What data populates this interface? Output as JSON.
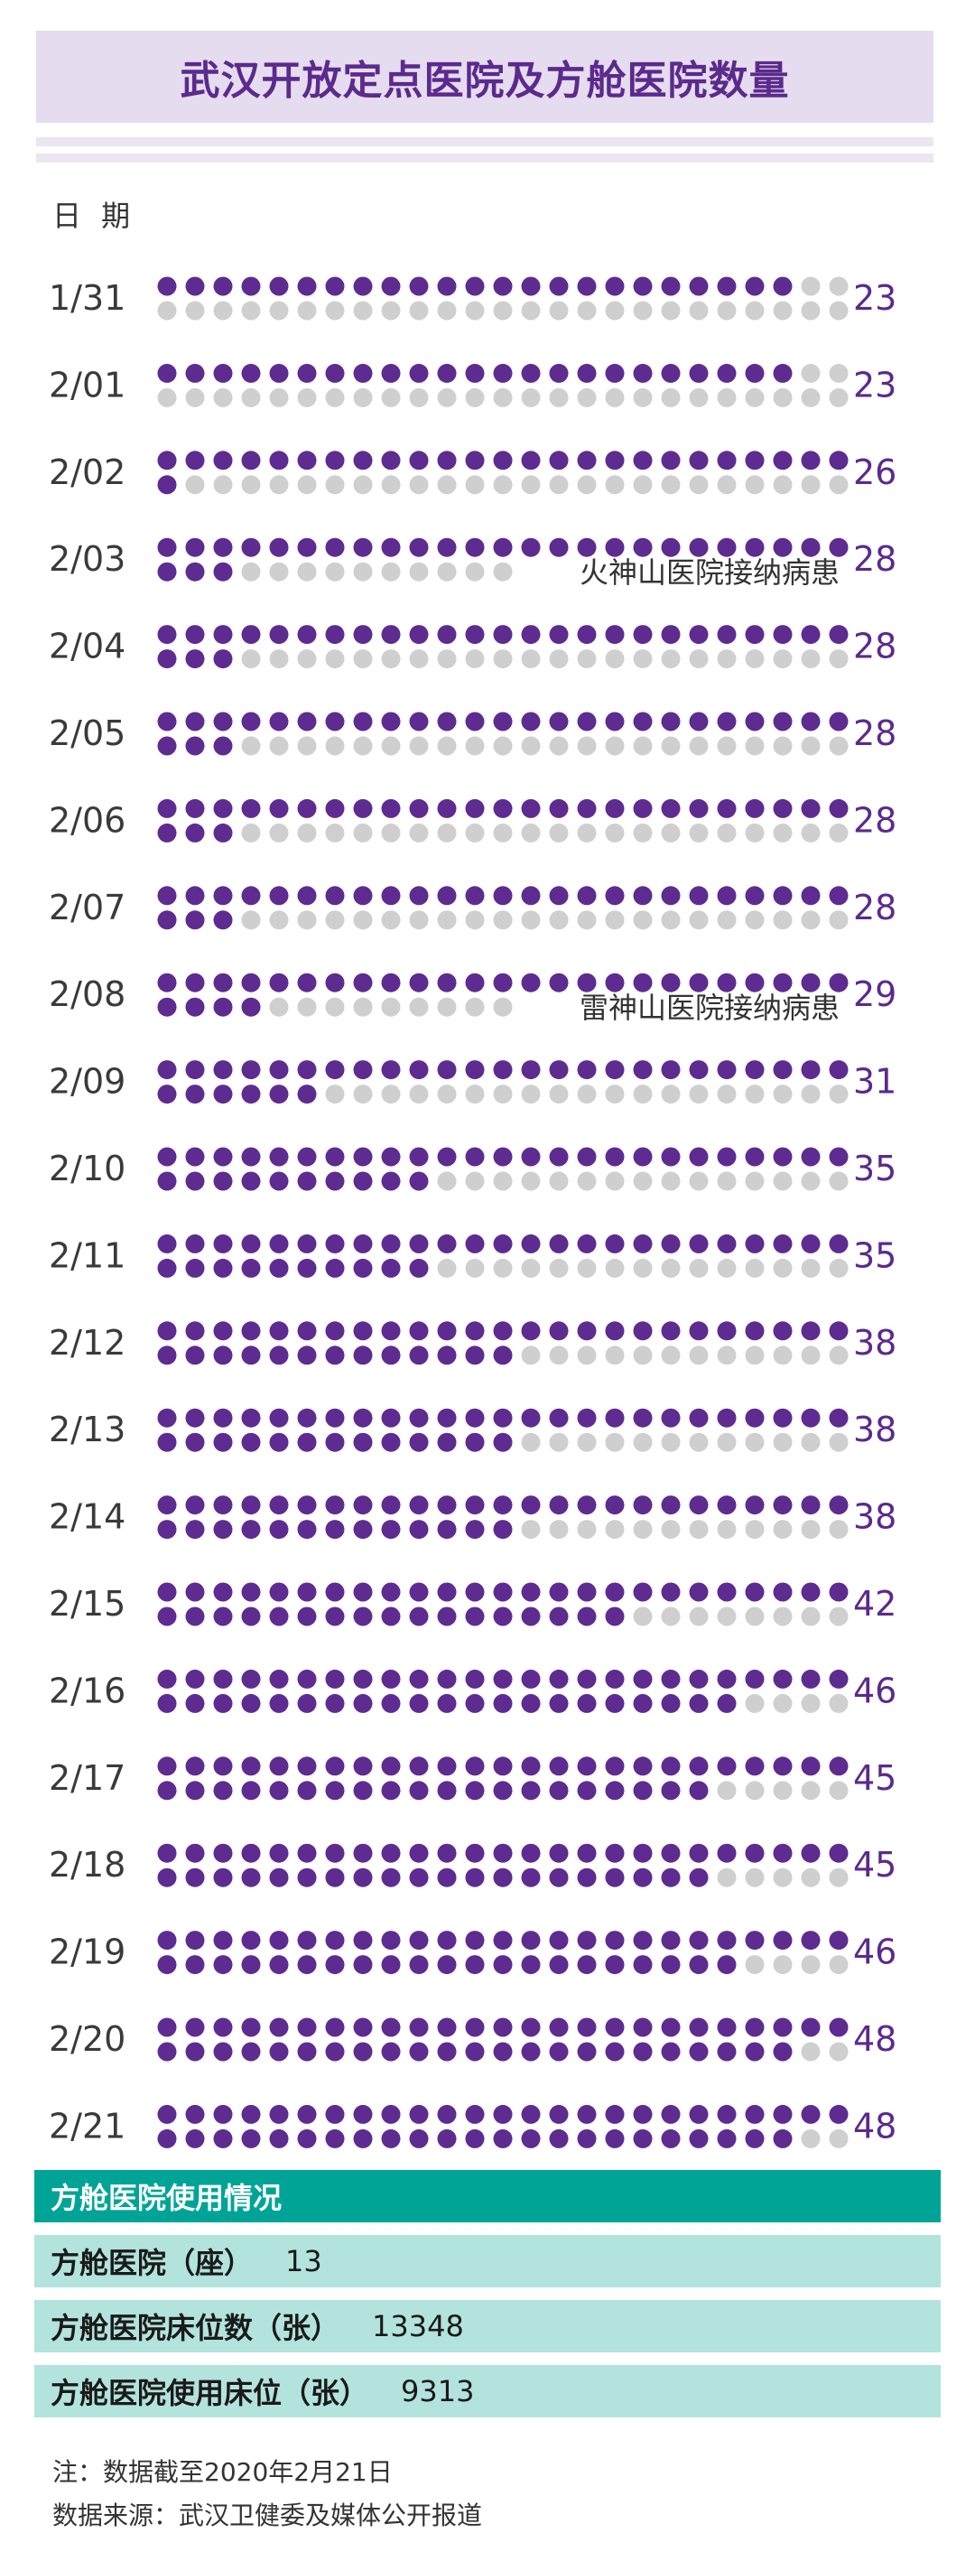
{
  "title": "武汉开放定点医院及方舱医院数量",
  "date_header": "日 期",
  "colors": {
    "accent": "#5b2a8c",
    "filled_dot": "#5e2b91",
    "empty_dot": "#cfcfcf",
    "teal": "#00a497",
    "light_teal": "#b3e3dd",
    "title_bg": "#e5dcef"
  },
  "chart_data": {
    "type": "dot-matrix",
    "capacity_per_row": 50,
    "categories": [
      "1/31",
      "2/01",
      "2/02",
      "2/03",
      "2/04",
      "2/05",
      "2/06",
      "2/07",
      "2/08",
      "2/09",
      "2/10",
      "2/11",
      "2/12",
      "2/13",
      "2/14",
      "2/15",
      "2/16",
      "2/17",
      "2/18",
      "2/19",
      "2/20",
      "2/21"
    ],
    "values": [
      23,
      23,
      26,
      28,
      28,
      28,
      28,
      28,
      29,
      31,
      35,
      35,
      38,
      38,
      38,
      42,
      46,
      45,
      45,
      46,
      48,
      48
    ],
    "annotations": [
      {
        "date": "2/03",
        "text": "火神山医院接纳病患"
      },
      {
        "date": "2/08",
        "text": "雷神山医院接纳病患"
      }
    ]
  },
  "usage": {
    "header": "方舱医院使用情况",
    "rows": [
      {
        "label": "方舱医院（座）",
        "value": "13"
      },
      {
        "label": "方舱医院床位数（张）",
        "value": "13348"
      },
      {
        "label": "方舱医院使用床位（张）",
        "value": "9313"
      }
    ]
  },
  "notes": {
    "note": "注：数据截至2020年2月21日",
    "source": "数据来源：武汉卫健委及媒体公开报道"
  }
}
